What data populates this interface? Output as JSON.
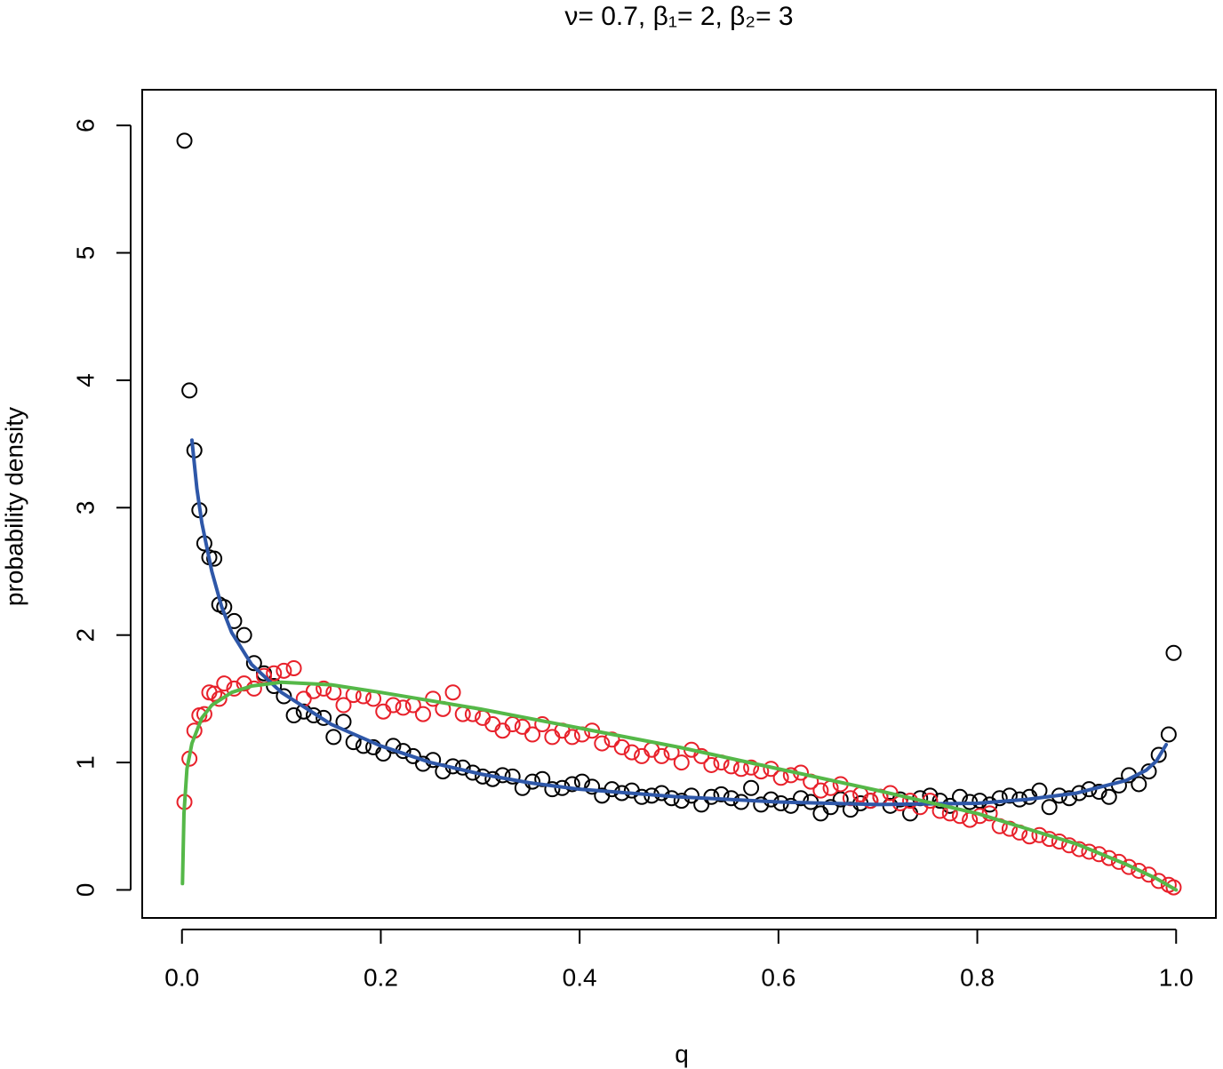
{
  "chart_data": {
    "type": "scatter",
    "title": "ν= 0.7, β₁= 2, β₂= 3",
    "x_label": "q",
    "y_label": "probability density",
    "xlim": [
      -0.04,
      1.04
    ],
    "ylim": [
      -0.22,
      6.28
    ],
    "xticks": [
      {
        "value": 0,
        "label": "0.0"
      },
      0.2,
      0.4,
      0.6,
      0.8,
      {
        "value": 1,
        "label": "1.0"
      }
    ],
    "yticks": [
      0,
      1,
      2,
      3,
      4,
      5,
      6
    ],
    "x": [
      0.0025,
      0.0075,
      0.0125,
      0.0175,
      0.0225,
      0.0275,
      0.0325,
      0.0375,
      0.0425,
      0.0525,
      0.0625,
      0.0725,
      0.0825,
      0.0925,
      0.1025,
      0.1125,
      0.1225,
      0.1325,
      0.1425,
      0.1525,
      0.1625,
      0.1725,
      0.1825,
      0.1925,
      0.2025,
      0.2125,
      0.2225,
      0.2325,
      0.2425,
      0.2525,
      0.2625,
      0.2725,
      0.2825,
      0.2925,
      0.3025,
      0.3125,
      0.3225,
      0.3325,
      0.3425,
      0.3525,
      0.3625,
      0.3725,
      0.3825,
      0.3925,
      0.4025,
      0.4125,
      0.4225,
      0.4325,
      0.4425,
      0.4525,
      0.4625,
      0.4725,
      0.4825,
      0.4925,
      0.5025,
      0.5125,
      0.5225,
      0.5325,
      0.5425,
      0.5525,
      0.5625,
      0.5725,
      0.5825,
      0.5925,
      0.6025,
      0.6125,
      0.6225,
      0.6325,
      0.6425,
      0.6525,
      0.6625,
      0.6725,
      0.6825,
      0.6925,
      0.7025,
      0.7125,
      0.7225,
      0.7325,
      0.7425,
      0.7525,
      0.7625,
      0.7725,
      0.7825,
      0.7925,
      0.8025,
      0.8125,
      0.8225,
      0.8325,
      0.8425,
      0.8525,
      0.8625,
      0.8725,
      0.8825,
      0.8925,
      0.9025,
      0.9125,
      0.9225,
      0.9325,
      0.9425,
      0.9525,
      0.9625,
      0.9725,
      0.9825,
      0.9925,
      0.9975
    ],
    "series": [
      {
        "mode": "points",
        "color": "#000000",
        "values": [
          5.88,
          3.92,
          3.45,
          2.98,
          2.72,
          2.61,
          2.6,
          2.24,
          2.22,
          2.11,
          2.0,
          1.78,
          1.7,
          1.6,
          1.52,
          1.37,
          1.4,
          1.37,
          1.35,
          1.2,
          1.32,
          1.16,
          1.13,
          1.12,
          1.07,
          1.13,
          1.09,
          1.05,
          0.99,
          1.02,
          0.93,
          0.97,
          0.96,
          0.92,
          0.89,
          0.87,
          0.9,
          0.89,
          0.8,
          0.85,
          0.87,
          0.79,
          0.8,
          0.83,
          0.85,
          0.81,
          0.74,
          0.79,
          0.76,
          0.78,
          0.73,
          0.74,
          0.76,
          0.72,
          0.7,
          0.74,
          0.67,
          0.73,
          0.75,
          0.72,
          0.69,
          0.8,
          0.67,
          0.71,
          0.68,
          0.66,
          0.72,
          0.69,
          0.6,
          0.65,
          0.71,
          0.63,
          0.68,
          0.7,
          0.73,
          0.66,
          0.71,
          0.6,
          0.72,
          0.74,
          0.7,
          0.66,
          0.73,
          0.69,
          0.7,
          0.67,
          0.72,
          0.74,
          0.71,
          0.73,
          0.78,
          0.65,
          0.74,
          0.72,
          0.76,
          0.79,
          0.77,
          0.73,
          0.82,
          0.9,
          0.83,
          0.93,
          1.06,
          1.22,
          1.86
        ]
      },
      {
        "mode": "points",
        "color": "#e8202a",
        "values": [
          0.69,
          1.03,
          1.25,
          1.37,
          1.38,
          1.55,
          1.54,
          1.5,
          1.62,
          1.58,
          1.62,
          1.58,
          1.68,
          1.7,
          1.72,
          1.74,
          1.5,
          1.56,
          1.58,
          1.55,
          1.45,
          1.53,
          1.52,
          1.5,
          1.4,
          1.45,
          1.43,
          1.45,
          1.38,
          1.5,
          1.42,
          1.55,
          1.38,
          1.38,
          1.35,
          1.3,
          1.25,
          1.3,
          1.28,
          1.22,
          1.3,
          1.2,
          1.25,
          1.2,
          1.22,
          1.25,
          1.15,
          1.18,
          1.12,
          1.08,
          1.05,
          1.1,
          1.05,
          1.08,
          1.0,
          1.1,
          1.05,
          0.98,
          1.0,
          0.97,
          0.95,
          0.96,
          0.93,
          0.95,
          0.88,
          0.9,
          0.92,
          0.85,
          0.78,
          0.8,
          0.83,
          0.72,
          0.75,
          0.7,
          0.73,
          0.76,
          0.68,
          0.7,
          0.65,
          0.7,
          0.62,
          0.6,
          0.58,
          0.55,
          0.58,
          0.6,
          0.5,
          0.48,
          0.45,
          0.42,
          0.43,
          0.4,
          0.38,
          0.35,
          0.32,
          0.3,
          0.28,
          0.25,
          0.22,
          0.18,
          0.15,
          0.12,
          0.07,
          0.04,
          0.02
        ]
      },
      {
        "mode": "line",
        "color": "#2e57a8",
        "x": [
          0.01,
          0.015,
          0.02,
          0.03,
          0.04,
          0.05,
          0.07,
          0.1,
          0.15,
          0.2,
          0.25,
          0.3,
          0.35,
          0.4,
          0.5,
          0.6,
          0.7,
          0.8,
          0.85,
          0.9,
          0.95,
          0.97,
          0.98,
          0.99
        ],
        "values": [
          3.53,
          3.15,
          2.88,
          2.5,
          2.22,
          2.02,
          1.77,
          1.55,
          1.3,
          1.13,
          1.0,
          0.91,
          0.84,
          0.79,
          0.73,
          0.69,
          0.67,
          0.68,
          0.71,
          0.76,
          0.86,
          0.94,
          1.01,
          1.14
        ]
      },
      {
        "mode": "line",
        "color": "#55b848",
        "x": [
          0.0005,
          0.002,
          0.005,
          0.01,
          0.02,
          0.03,
          0.05,
          0.07,
          0.1,
          0.15,
          0.2,
          0.3,
          0.4,
          0.5,
          0.6,
          0.7,
          0.8,
          0.85,
          0.9,
          0.95,
          0.98,
          1.0
        ],
        "values": [
          0.05,
          0.6,
          0.95,
          1.15,
          1.35,
          1.45,
          1.55,
          1.6,
          1.63,
          1.61,
          1.55,
          1.42,
          1.27,
          1.12,
          0.95,
          0.78,
          0.6,
          0.48,
          0.36,
          0.2,
          0.09,
          0.0
        ]
      }
    ]
  }
}
